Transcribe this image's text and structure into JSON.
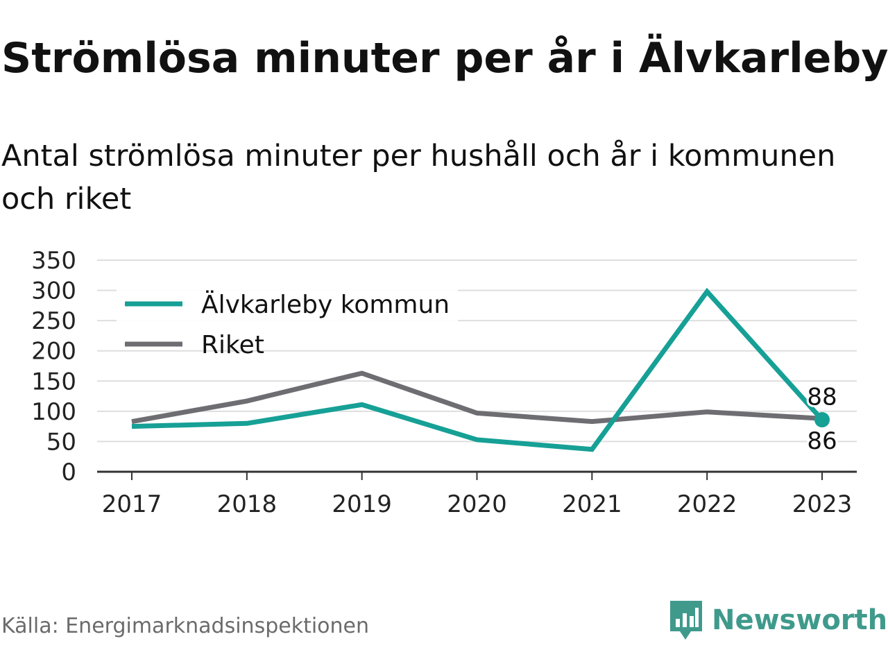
{
  "title": "Strömlösa minuter per år i Älvkarleby",
  "subtitle": "Antal strömlösa minuter per hushåll och år i kommunen och riket",
  "source": "Källa: Energimarknadsinspektionen",
  "brand": {
    "name": "Newsworthy",
    "icon": "newsworthy-logo-icon",
    "color": "#3f9a8c"
  },
  "colors": {
    "kommun": "#16a096",
    "riket": "#6e6d72",
    "grid": "#dedede",
    "axis": "#333333"
  },
  "chart_data": {
    "type": "line",
    "x": [
      "2017",
      "2018",
      "2019",
      "2020",
      "2021",
      "2022",
      "2023"
    ],
    "series": [
      {
        "name": "Älvkarleby kommun",
        "values": [
          75,
          80,
          111,
          53,
          37,
          298,
          86
        ]
      },
      {
        "name": "Riket",
        "values": [
          83,
          117,
          163,
          97,
          83,
          99,
          88
        ]
      }
    ],
    "ylim": [
      0,
      350
    ],
    "yticks": [
      0,
      50,
      100,
      150,
      200,
      250,
      300,
      350
    ],
    "grid": true,
    "legend_position": "top-left",
    "annotations": [
      {
        "text": "88",
        "series": "Riket",
        "x": "2023"
      },
      {
        "text": "86",
        "series": "Älvkarleby kommun",
        "x": "2023"
      }
    ]
  }
}
